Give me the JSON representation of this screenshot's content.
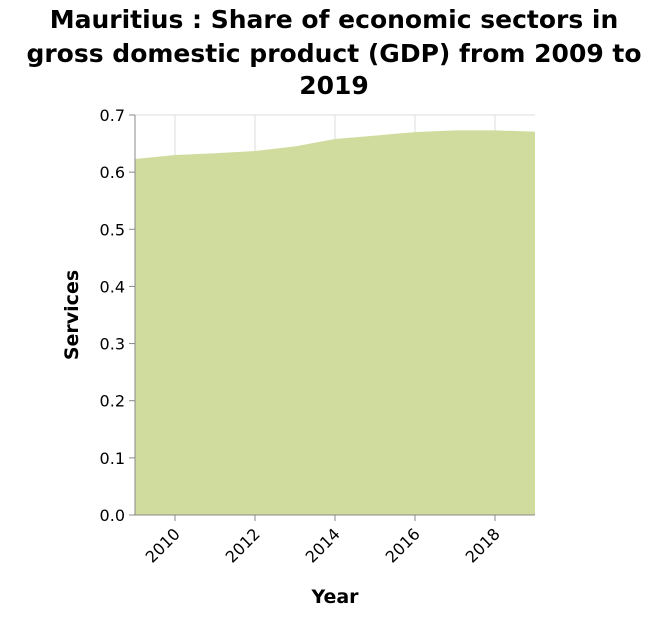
{
  "chart_data": {
    "type": "area",
    "title_lines": [
      "Mauritius : Share of economic sectors in",
      "gross domestic product (GDP) from 2009 to",
      "2019"
    ],
    "xlabel": "Year",
    "ylabel": "Services",
    "x": [
      2009,
      2010,
      2011,
      2012,
      2013,
      2014,
      2015,
      2016,
      2017,
      2018,
      2019
    ],
    "y": [
      0.623,
      0.63,
      0.633,
      0.637,
      0.645,
      0.658,
      0.664,
      0.67,
      0.673,
      0.673,
      0.671
    ],
    "xlim": [
      2009,
      2019
    ],
    "ylim": [
      0,
      0.7
    ],
    "x_ticks": [
      "2010",
      "2012",
      "2014",
      "2016",
      "2018"
    ],
    "y_ticks": [
      "0.0",
      "0.1",
      "0.2",
      "0.3",
      "0.4",
      "0.5",
      "0.6",
      "0.7"
    ],
    "grid": true,
    "legend": "none",
    "colors": {
      "area": "#d0dc9e",
      "grid": "#dcdcdc",
      "axis": "#888888"
    }
  }
}
